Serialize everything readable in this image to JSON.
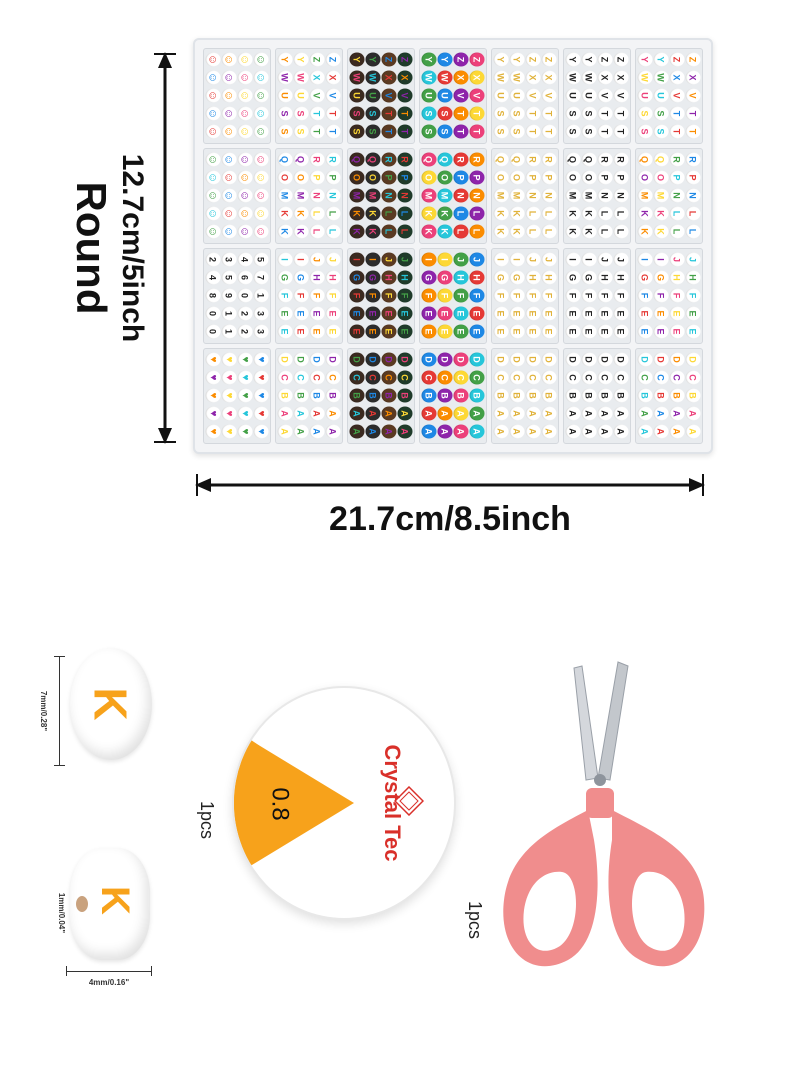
{
  "labels": {
    "round": "Round",
    "height": "12.7cm/5inch",
    "width": "21.7cm/8.5inch",
    "bead_height": "7mm/0.28\"",
    "bead_hole": "1mm/0.04\"",
    "bead_thickness": "4mm/0.16\"",
    "bead_letter": "K",
    "cord_brand": "Crystal Tec",
    "cord_size": "0.8",
    "cord_qty": "1pcs",
    "scissors_qty": "1pcs"
  },
  "colors": {
    "orange": "#f7a21b",
    "brand_red": "#d9302a",
    "scissor_pink": "#f08d8d"
  },
  "grid": [
    [
      {
        "style": "smiley-white",
        "chars": [
          "☺",
          "☺",
          "☺",
          "☺",
          "☺",
          "☺",
          "☺",
          "☺",
          "☺",
          "☺",
          "☺",
          "☺",
          "☺",
          "☺",
          "☺",
          "☺",
          "☺",
          "☺",
          "☺",
          "☺"
        ]
      },
      {
        "style": "white-multi",
        "chars": [
          "Y",
          "Y",
          "Z",
          "Z",
          "W",
          "W",
          "X",
          "X",
          "U",
          "U",
          "V",
          "V",
          "S",
          "S",
          "T",
          "T",
          "S",
          "S",
          "T",
          "T"
        ]
      },
      {
        "style": "dark-multi",
        "chars": [
          "Y",
          "Y",
          "Z",
          "Z",
          "W",
          "W",
          "X",
          "X",
          "U",
          "U",
          "V",
          "V",
          "S",
          "S",
          "T",
          "T",
          "S",
          "S",
          "T",
          "T"
        ]
      },
      {
        "style": "color-white",
        "chars": [
          "Y",
          "Y",
          "Z",
          "Z",
          "W",
          "W",
          "X",
          "X",
          "U",
          "U",
          "V",
          "V",
          "S",
          "S",
          "T",
          "T",
          "S",
          "S",
          "T",
          "T"
        ]
      },
      {
        "style": "white-gold",
        "chars": [
          "Y",
          "Y",
          "Z",
          "Z",
          "W",
          "W",
          "X",
          "X",
          "U",
          "U",
          "V",
          "V",
          "S",
          "S",
          "T",
          "T",
          "S",
          "S",
          "T",
          "T"
        ]
      },
      {
        "style": "white-black",
        "chars": [
          "Y",
          "Y",
          "Z",
          "Z",
          "W",
          "W",
          "X",
          "X",
          "U",
          "U",
          "V",
          "V",
          "S",
          "S",
          "T",
          "T",
          "S",
          "S",
          "T",
          "T"
        ]
      },
      {
        "style": "white-multi",
        "chars": [
          "Y",
          "Y",
          "Z",
          "Z",
          "W",
          "W",
          "X",
          "X",
          "U",
          "U",
          "V",
          "V",
          "S",
          "S",
          "T",
          "T",
          "S",
          "S",
          "T",
          "T"
        ]
      }
    ],
    [
      {
        "style": "smiley-white",
        "chars": [
          "☺",
          "☺",
          "☺",
          "☺",
          "☺",
          "☺",
          "☺",
          "☺",
          "☺",
          "☺",
          "☺",
          "☺",
          "☺",
          "☺",
          "☺",
          "☺",
          "☺",
          "☺",
          "☺",
          "☺"
        ]
      },
      {
        "style": "white-multi",
        "chars": [
          "Q",
          "Q",
          "R",
          "R",
          "O",
          "O",
          "P",
          "P",
          "M",
          "M",
          "N",
          "N",
          "K",
          "K",
          "L",
          "L",
          "K",
          "K",
          "L",
          "L"
        ]
      },
      {
        "style": "dark-multi",
        "chars": [
          "Q",
          "Q",
          "R",
          "R",
          "O",
          "O",
          "P",
          "P",
          "M",
          "M",
          "N",
          "N",
          "K",
          "K",
          "L",
          "L",
          "K",
          "K",
          "L",
          "L"
        ]
      },
      {
        "style": "color-white",
        "chars": [
          "Q",
          "Q",
          "R",
          "R",
          "O",
          "O",
          "P",
          "P",
          "M",
          "M",
          "N",
          "N",
          "K",
          "K",
          "L",
          "L",
          "K",
          "K",
          "L",
          "L"
        ]
      },
      {
        "style": "white-gold",
        "chars": [
          "Q",
          "Q",
          "R",
          "R",
          "O",
          "O",
          "P",
          "P",
          "M",
          "M",
          "N",
          "N",
          "K",
          "K",
          "L",
          "L",
          "K",
          "K",
          "L",
          "L"
        ]
      },
      {
        "style": "white-black",
        "chars": [
          "Q",
          "Q",
          "R",
          "R",
          "O",
          "O",
          "P",
          "P",
          "M",
          "M",
          "N",
          "N",
          "K",
          "K",
          "L",
          "L",
          "K",
          "K",
          "L",
          "L"
        ]
      },
      {
        "style": "white-multi",
        "chars": [
          "Q",
          "Q",
          "R",
          "R",
          "O",
          "O",
          "P",
          "P",
          "M",
          "M",
          "N",
          "N",
          "K",
          "K",
          "L",
          "L",
          "K",
          "K",
          "L",
          "L"
        ]
      }
    ],
    [
      {
        "style": "white-black",
        "chars": [
          "2",
          "3",
          "4",
          "5",
          "4",
          "5",
          "6",
          "7",
          "8",
          "9",
          "0",
          "1",
          "0",
          "1",
          "2",
          "3",
          "0",
          "1",
          "2",
          "3"
        ]
      },
      {
        "style": "white-multi",
        "chars": [
          "I",
          "I",
          "J",
          "J",
          "G",
          "G",
          "H",
          "H",
          "F",
          "F",
          "F",
          "F",
          "E",
          "E",
          "E",
          "E",
          "E",
          "E",
          "E",
          "E"
        ]
      },
      {
        "style": "dark-multi",
        "chars": [
          "I",
          "I",
          "J",
          "J",
          "G",
          "G",
          "H",
          "H",
          "F",
          "F",
          "F",
          "F",
          "E",
          "E",
          "E",
          "E",
          "E",
          "E",
          "E",
          "E"
        ]
      },
      {
        "style": "color-white",
        "chars": [
          "I",
          "I",
          "J",
          "J",
          "G",
          "G",
          "H",
          "H",
          "F",
          "F",
          "F",
          "F",
          "E",
          "E",
          "E",
          "E",
          "E",
          "E",
          "E",
          "E"
        ]
      },
      {
        "style": "white-gold",
        "chars": [
          "I",
          "I",
          "J",
          "J",
          "G",
          "G",
          "H",
          "H",
          "F",
          "F",
          "F",
          "F",
          "E",
          "E",
          "E",
          "E",
          "E",
          "E",
          "E",
          "E"
        ]
      },
      {
        "style": "white-black",
        "chars": [
          "I",
          "I",
          "J",
          "J",
          "G",
          "G",
          "H",
          "H",
          "F",
          "F",
          "F",
          "F",
          "E",
          "E",
          "E",
          "E",
          "E",
          "E",
          "E",
          "E"
        ]
      },
      {
        "style": "white-multi",
        "chars": [
          "I",
          "I",
          "J",
          "J",
          "G",
          "G",
          "H",
          "H",
          "F",
          "F",
          "F",
          "F",
          "E",
          "E",
          "E",
          "E",
          "E",
          "E",
          "E",
          "E"
        ]
      }
    ],
    [
      {
        "style": "heart-white",
        "chars": [
          "♥",
          "♥",
          "♥",
          "♥",
          "♥",
          "♥",
          "♥",
          "♥",
          "♥",
          "♥",
          "♥",
          "♥",
          "♥",
          "♥",
          "♥",
          "♥",
          "♥",
          "♥",
          "♥",
          "♥"
        ]
      },
      {
        "style": "white-multi",
        "chars": [
          "D",
          "D",
          "D",
          "D",
          "C",
          "C",
          "C",
          "C",
          "B",
          "B",
          "B",
          "B",
          "A",
          "A",
          "A",
          "A",
          "A",
          "A",
          "A",
          "A"
        ]
      },
      {
        "style": "dark-multi",
        "chars": [
          "D",
          "D",
          "D",
          "D",
          "C",
          "C",
          "C",
          "C",
          "B",
          "B",
          "B",
          "B",
          "A",
          "A",
          "A",
          "A",
          "A",
          "A",
          "A",
          "A"
        ]
      },
      {
        "style": "color-white",
        "chars": [
          "D",
          "D",
          "D",
          "D",
          "C",
          "C",
          "C",
          "C",
          "B",
          "B",
          "B",
          "B",
          "A",
          "A",
          "A",
          "A",
          "A",
          "A",
          "A",
          "A"
        ]
      },
      {
        "style": "white-gold",
        "chars": [
          "D",
          "D",
          "D",
          "D",
          "C",
          "C",
          "C",
          "C",
          "B",
          "B",
          "B",
          "B",
          "A",
          "A",
          "A",
          "A",
          "A",
          "A",
          "A",
          "A"
        ]
      },
      {
        "style": "white-black",
        "chars": [
          "D",
          "D",
          "D",
          "D",
          "C",
          "C",
          "C",
          "C",
          "B",
          "B",
          "B",
          "B",
          "A",
          "A",
          "A",
          "A",
          "A",
          "A",
          "A",
          "A"
        ]
      },
      {
        "style": "white-multi",
        "chars": [
          "D",
          "D",
          "D",
          "D",
          "C",
          "C",
          "C",
          "C",
          "B",
          "B",
          "B",
          "B",
          "A",
          "A",
          "A",
          "A",
          "A",
          "A",
          "A",
          "A"
        ]
      }
    ]
  ]
}
